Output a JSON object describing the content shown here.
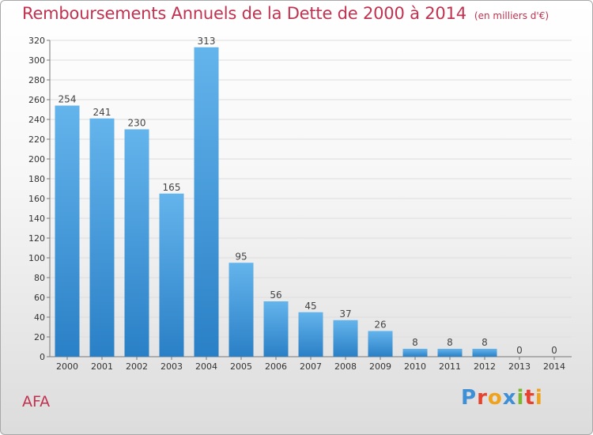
{
  "title": "Remboursements Annuels de la Dette de 2000 à 2014",
  "subtitle": "(en milliers d'€)",
  "footer_label": "AFA",
  "logo": {
    "text": "Proxiti",
    "letters": [
      {
        "char": "P",
        "color": "#3d8fd6"
      },
      {
        "char": "r",
        "color": "#e7422e"
      },
      {
        "char": "o",
        "color": "#f0a21a"
      },
      {
        "char": "x",
        "color": "#3d8fd6"
      },
      {
        "char": "i",
        "color": "#7cb82f"
      },
      {
        "char": "t",
        "color": "#e7422e"
      },
      {
        "char": "i",
        "color": "#f0a21a"
      }
    ]
  },
  "colors": {
    "title": "#c0324f",
    "bar_light": "#64b4ec",
    "bar_dark": "#2a80c6",
    "grid": "#dddddd"
  },
  "chart_data": {
    "type": "bar",
    "title": "Remboursements Annuels de la Dette de 2000 à 2014",
    "subtitle": "(en milliers d'€)",
    "categories": [
      "2000",
      "2001",
      "2002",
      "2003",
      "2004",
      "2005",
      "2006",
      "2007",
      "2008",
      "2009",
      "2010",
      "2011",
      "2012",
      "2013",
      "2014"
    ],
    "values": [
      254,
      241,
      230,
      165,
      313,
      95,
      56,
      45,
      37,
      26,
      8,
      8,
      8,
      0,
      0
    ],
    "ylim": [
      0,
      320
    ],
    "yticks": [
      0,
      20,
      40,
      60,
      80,
      100,
      120,
      140,
      160,
      180,
      200,
      220,
      240,
      260,
      280,
      300,
      320
    ],
    "grid": true,
    "legend": "none"
  }
}
